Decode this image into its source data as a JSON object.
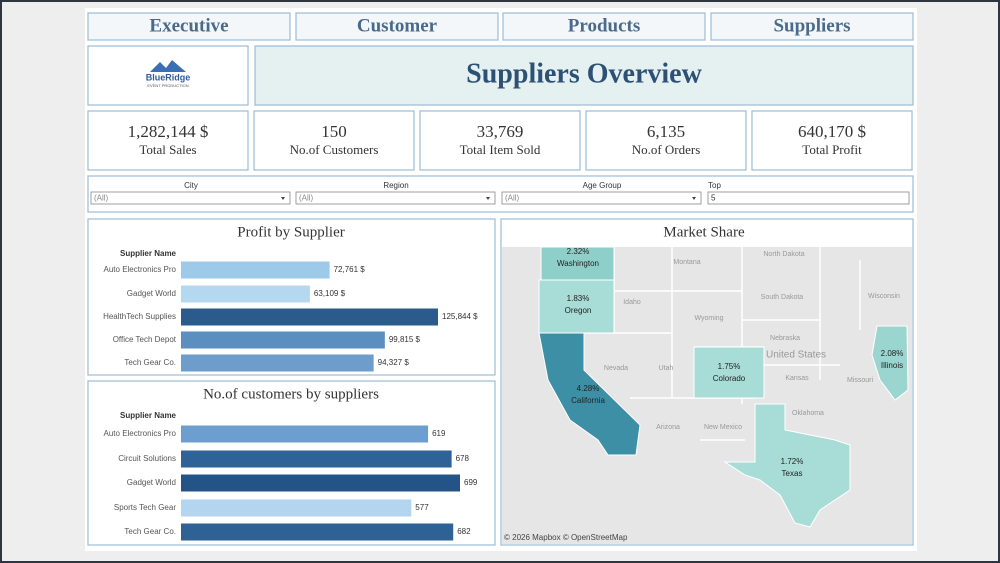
{
  "tabs": [
    "Executive",
    "Customer",
    "Products",
    "Suppliers"
  ],
  "logo": {
    "name": "BlueRidge",
    "tagline": "EVENT PRODUCTION"
  },
  "title": "Suppliers Overview",
  "kpis": [
    {
      "value": "1,282,144 $",
      "label": "Total Sales"
    },
    {
      "value": "150",
      "label": "No.of Customers"
    },
    {
      "value": "33,769",
      "label": "Total Item Sold"
    },
    {
      "value": "6,135",
      "label": "No.of Orders"
    },
    {
      "value": "640,170 $",
      "label": "Total Profit"
    }
  ],
  "filters": [
    {
      "label": "City",
      "value": "(All)"
    },
    {
      "label": "Region",
      "value": "(All)"
    },
    {
      "label": "Age Group",
      "value": "(All)"
    },
    {
      "label": "Top",
      "value": "5"
    }
  ],
  "charts": [
    {
      "type": "bar",
      "title": "Profit by Supplier",
      "axis_label": "Supplier Name",
      "categories": [
        "Auto Electronics Pro",
        "Gadget World",
        "HealthTech Supplies",
        "Office Tech Depot",
        "Tech Gear Co."
      ],
      "values": [
        72761,
        63109,
        125844,
        99815,
        94327
      ],
      "value_labels": [
        "72,761 $",
        "63,109 $",
        "125,844 $",
        "99,815 $",
        "94,327 $"
      ],
      "colors": [
        "#9ecae9",
        "#b5d8f1",
        "#2a5b8c",
        "#5b8fc0",
        "#6e9ccb"
      ]
    },
    {
      "type": "bar",
      "title": "No.of customers by suppliers",
      "axis_label": "Supplier Name",
      "categories": [
        "Auto Electronics Pro",
        "Circuit Solutions",
        "Gadget World",
        "Sports Tech Gear",
        "Tech Gear Co."
      ],
      "values": [
        619,
        678,
        699,
        577,
        682
      ],
      "colors": [
        "#6d9ed0",
        "#2f6296",
        "#245487",
        "#b3d5ef",
        "#2e6194"
      ]
    },
    {
      "type": "map",
      "title": "Market Share",
      "regions": [
        "Washington",
        "Oregon",
        "California",
        "Colorado",
        "Texas",
        "Illinois"
      ],
      "values": [
        2.32,
        1.83,
        4.28,
        1.75,
        1.72,
        2.08
      ],
      "value_labels": [
        "2.32%",
        "1.83%",
        "4.28%",
        "1.75%",
        "1.72%",
        "2.08%"
      ],
      "colors": [
        "#8fcfc9",
        "#a8dcd7",
        "#3d8fa6",
        "#a8dcd7",
        "#a8dcd7",
        "#9bd5cf"
      ],
      "place_labels": [
        "North Dakota",
        "Montana",
        "Idaho",
        "South Dakota",
        "Wisconsin",
        "Wyoming",
        "Nebraska",
        "United States",
        "Nevada",
        "Utah",
        "Kansas",
        "Missouri",
        "Arizona",
        "New Mexico",
        "Oklahoma"
      ],
      "attribution": "© 2026 Mapbox © OpenStreetMap"
    }
  ]
}
